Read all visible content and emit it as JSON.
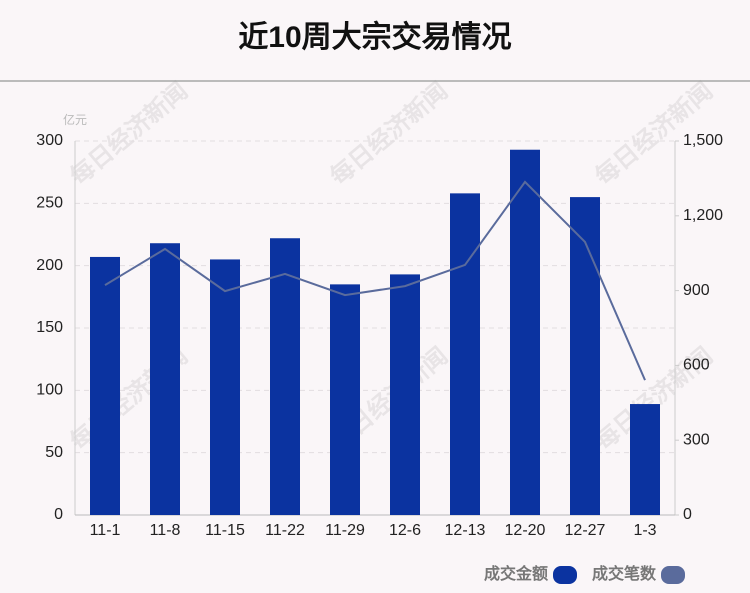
{
  "chart_data": {
    "type": "bar",
    "title": "近10周大宗交易情况",
    "y_unit": "亿元",
    "watermark": "每日经济新闻",
    "categories": [
      "11-1",
      "11-8",
      "11-15",
      "11-22",
      "11-29",
      "12-6",
      "12-13",
      "12-20",
      "12-27",
      "1-3"
    ],
    "series": [
      {
        "name": "成交金额",
        "type": "bar",
        "color": "#0b33a0",
        "values": [
          207,
          218,
          205,
          222,
          185,
          193,
          258,
          293,
          255,
          89
        ]
      },
      {
        "name": "成交笔数",
        "type": "line",
        "axis": "y2",
        "color": "#5a6b9c",
        "values": [
          922,
          1067,
          898,
          967,
          882,
          918,
          1003,
          1336,
          1095,
          541
        ]
      }
    ],
    "ylim": [
      0,
      300
    ],
    "yticks": [
      0,
      50,
      100,
      150,
      200,
      250,
      300
    ],
    "y2lim": [
      0,
      1500
    ],
    "y2ticks": [
      0,
      300,
      600,
      900,
      {
        "value": 1200,
        "label": "1,200"
      },
      {
        "value": 1500,
        "label": "1,500"
      }
    ],
    "grid": true,
    "legend": "bottom-right"
  }
}
